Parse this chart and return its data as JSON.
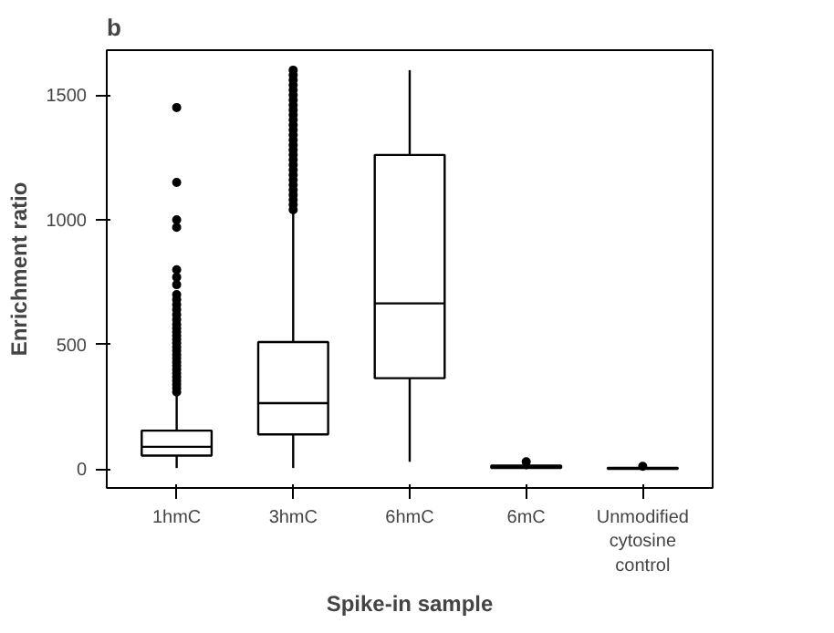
{
  "chart_data": {
    "type": "box",
    "title": "b",
    "xlabel": "Spike-in sample",
    "ylabel": "Enrichment ratio",
    "categories": [
      "1hmC",
      "3hmC",
      "6hmC",
      "6mC",
      "Unmodified cytosine control"
    ],
    "boxes": [
      {
        "low": 5,
        "q1": 55,
        "median": 90,
        "q3": 155,
        "high": 300,
        "outliers": [
          310,
          325,
          340,
          355,
          370,
          385,
          400,
          415,
          430,
          445,
          460,
          475,
          490,
          505,
          520,
          535,
          550,
          565,
          580,
          600,
          620,
          640,
          660,
          680,
          700,
          740,
          770,
          800,
          970,
          1000,
          1150,
          1450
        ]
      },
      {
        "low": 5,
        "q1": 140,
        "median": 265,
        "q3": 510,
        "high": 1030,
        "outliers": [
          1040,
          1060,
          1080,
          1100,
          1120,
          1140,
          1160,
          1180,
          1200,
          1220,
          1240,
          1260,
          1280,
          1300,
          1320,
          1340,
          1360,
          1380,
          1400,
          1420,
          1440,
          1460,
          1480,
          1500,
          1520,
          1540,
          1560,
          1580,
          1600
        ]
      },
      {
        "low": 30,
        "q1": 365,
        "median": 665,
        "q3": 1260,
        "high": 1600
      },
      {
        "low": 0,
        "q1": 5,
        "median": 10,
        "q3": 15,
        "high": 20,
        "outliers": [
          30
        ]
      },
      {
        "low": 0,
        "q1": 2,
        "median": 4,
        "q3": 6,
        "high": 8,
        "outliers": [
          12
        ]
      }
    ],
    "ylim": [
      -75,
      1680
    ],
    "yticks": [
      0,
      500,
      1000,
      1500
    ],
    "grid": false
  }
}
